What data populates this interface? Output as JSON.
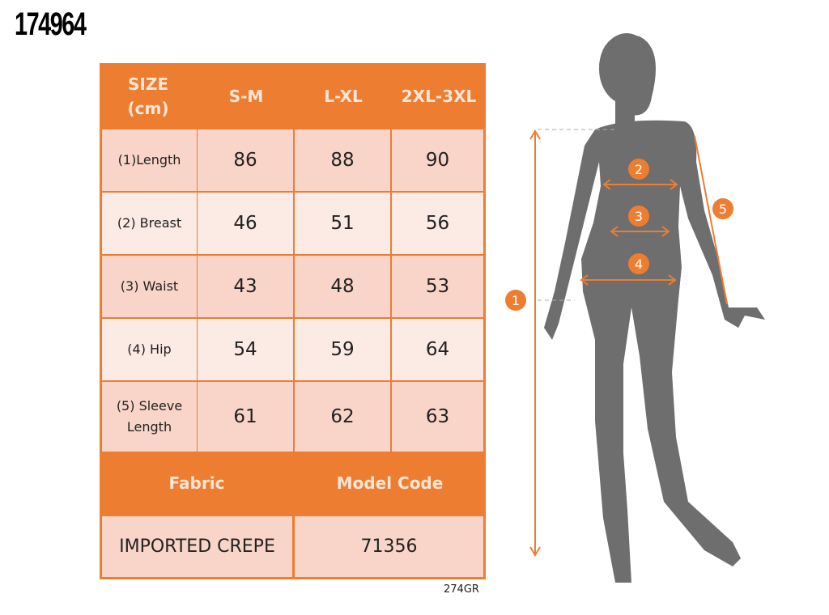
{
  "product_code": "174964",
  "table": {
    "header": [
      "SIZE\n(cm)",
      "S-M",
      "L-XL",
      "2XL-3XL"
    ],
    "rows": [
      {
        "label": "(1)Length",
        "values": [
          "86",
          "88",
          "90"
        ]
      },
      {
        "label": "(2) Breast",
        "values": [
          "46",
          "51",
          "56"
        ]
      },
      {
        "label": "(3) Waist",
        "values": [
          "43",
          "48",
          "53"
        ]
      },
      {
        "label": "(4) Hip",
        "values": [
          "54",
          "59",
          "64"
        ]
      },
      {
        "label": "(5) Sleeve\nLength",
        "values": [
          "61",
          "62",
          "63"
        ]
      }
    ],
    "fabric_label": "Fabric",
    "model_code_label": "Model Code",
    "fabric_value": "IMPORTED CREPE",
    "model_code_value": "71356"
  },
  "footer_code": "274GR",
  "figure": {
    "markers": [
      "1",
      "2",
      "3",
      "4",
      "5"
    ]
  },
  "colors": {
    "accent": "#ED7D31",
    "cell_dark": "#F8D5C8",
    "cell_light": "#FCEAE4",
    "silhouette": "#6E6E6E"
  }
}
